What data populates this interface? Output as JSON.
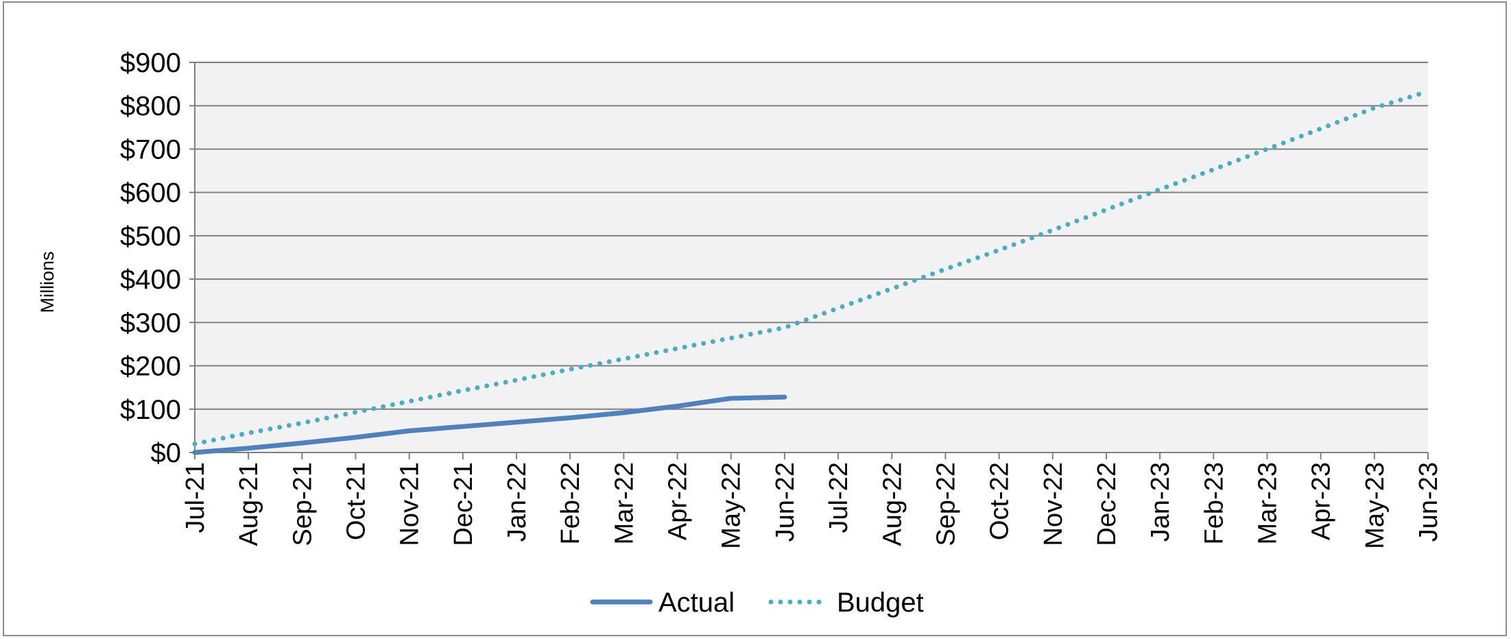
{
  "chart_data": {
    "type": "line",
    "title": "",
    "xlabel": "",
    "ylabel": "Millions",
    "ylim": [
      0,
      900
    ],
    "y_ticks": [
      0,
      100,
      200,
      300,
      400,
      500,
      600,
      700,
      800,
      900
    ],
    "y_tick_labels": [
      "$0",
      "$100",
      "$200",
      "$300",
      "$400",
      "$500",
      "$600",
      "$700",
      "$800",
      "$900"
    ],
    "x": [
      "Jul-21",
      "Aug-21",
      "Sep-21",
      "Oct-21",
      "Nov-21",
      "Dec-21",
      "Jan-22",
      "Feb-22",
      "Mar-22",
      "Apr-22",
      "May-22",
      "Jun-22",
      "Jul-22",
      "Aug-22",
      "Sep-22",
      "Oct-22",
      "Nov-22",
      "Dec-22",
      "Jan-23",
      "Feb-23",
      "Mar-23",
      "Apr-23",
      "May-23",
      "Jun-23"
    ],
    "series": [
      {
        "name": "Actual",
        "color": "#4f81bd",
        "style": "solid",
        "values": [
          0,
          10,
          22,
          35,
          50,
          60,
          70,
          80,
          92,
          107,
          125,
          128,
          null,
          null,
          null,
          null,
          null,
          null,
          null,
          null,
          null,
          null,
          null,
          null
        ]
      },
      {
        "name": "Budget",
        "color": "#4bacc6",
        "style": "dotted",
        "values": [
          20,
          45,
          68,
          93,
          118,
          143,
          167,
          192,
          216,
          240,
          264,
          288,
          333,
          378,
          423,
          467,
          513,
          560,
          607,
          653,
          700,
          747,
          795,
          833
        ]
      }
    ],
    "grid": true,
    "plot_background": "#f2f2f2",
    "gridline_color": "#808080",
    "legend_position": "bottom"
  }
}
